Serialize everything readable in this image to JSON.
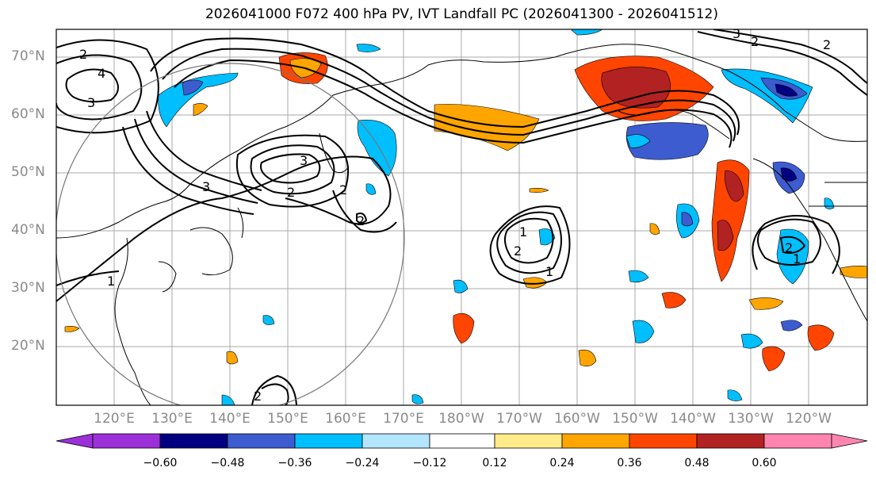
{
  "title": "2026041000 F072 400 hPa PV, IVT Landfall PC (2026041300 - 2026041512)",
  "lat_labels": [
    "70°N",
    "60°N",
    "50°N",
    "40°N",
    "30°N",
    "20°N"
  ],
  "lon_labels": [
    "120°E",
    "130°E",
    "140°E",
    "150°E",
    "160°E",
    "170°E",
    "180°W",
    "170°W",
    "160°W",
    "150°W",
    "140°W",
    "130°W",
    "120°W"
  ],
  "contour_labels": [
    "2",
    "4",
    "3",
    "3",
    "2",
    "2",
    "3",
    "2",
    "1",
    "2",
    "1",
    "2",
    "1",
    "1",
    "2",
    "3",
    "2",
    "2"
  ],
  "colorbar": {
    "ticks": [
      "−0.60",
      "−0.48",
      "−0.36",
      "−0.24",
      "−0.12",
      "0.12",
      "0.24",
      "0.36",
      "0.48",
      "0.60"
    ],
    "colors": [
      "#9b30d9",
      "#000080",
      "#3c5ccf",
      "#00bfff",
      "#b3e5fc",
      "#ffffff",
      "#ffeb8a",
      "#ffa500",
      "#ff4500",
      "#b22222",
      "#ff85b0"
    ]
  }
}
